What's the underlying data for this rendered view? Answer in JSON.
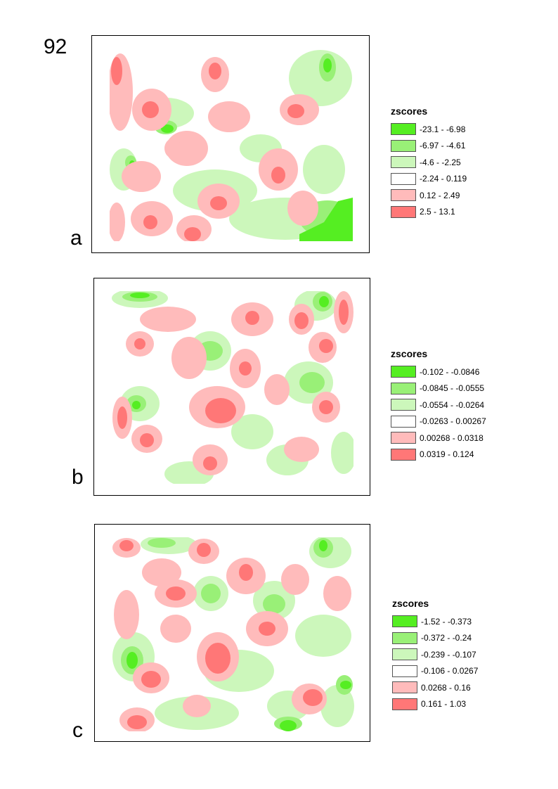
{
  "page_number": "92",
  "colors": {
    "class1": "#55ee22",
    "class2": "#99f077",
    "class3": "#ccf7bb",
    "class4": "#ffffff",
    "class5": "#ffbbbb",
    "class6": "#ff7777"
  },
  "panels": [
    {
      "letter": "a",
      "legend": {
        "title": "zscores",
        "entries": [
          {
            "label": "-23.1 - -6.98"
          },
          {
            "label": "-6.97 - -4.61"
          },
          {
            "label": "-4.6 - -2.25"
          },
          {
            "label": "-2.24 - 0.119"
          },
          {
            "label": "0.12 - 2.49"
          },
          {
            "label": "2.5 - 13.1"
          }
        ]
      }
    },
    {
      "letter": "b",
      "legend": {
        "title": "zscores",
        "entries": [
          {
            "label": "-0.102 - -0.0846"
          },
          {
            "label": "-0.0845 - -0.0555"
          },
          {
            "label": "-0.0554 - -0.0264"
          },
          {
            "label": "-0.0263 - 0.00267"
          },
          {
            "label": "0.00268 - 0.0318"
          },
          {
            "label": "0.0319 - 0.124"
          }
        ]
      }
    },
    {
      "letter": "c",
      "legend": {
        "title": "zscores",
        "entries": [
          {
            "label": "-1.52 - -0.373"
          },
          {
            "label": "-0.372 - -0.24"
          },
          {
            "label": "-0.239 - -0.107"
          },
          {
            "label": "-0.106 - 0.0267"
          },
          {
            "label": "0.0268 - 0.16"
          },
          {
            "label": "0.161 - 1.03"
          }
        ]
      }
    }
  ]
}
